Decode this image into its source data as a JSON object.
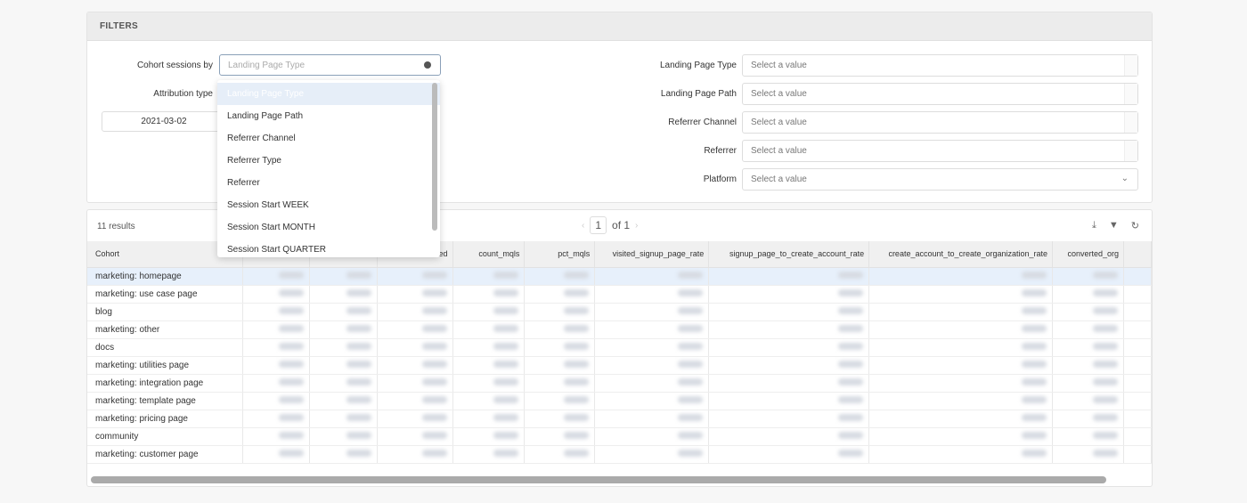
{
  "filters": {
    "title": "FILTERS",
    "cohort_label": "Cohort sessions by",
    "cohort_placeholder": "Landing Page Type",
    "attribution_label": "Attribution type",
    "date_value": "2021-03-02",
    "dropdown_options": [
      "Landing Page Type",
      "Landing Page Path",
      "Referrer Channel",
      "Referrer Type",
      "Referrer",
      "Session Start WEEK",
      "Session Start MONTH",
      "Session Start QUARTER"
    ],
    "right": [
      {
        "label": "Landing Page Type",
        "placeholder": "Select a value"
      },
      {
        "label": "Landing Page Path",
        "placeholder": "Select a value"
      },
      {
        "label": "Referrer Channel",
        "placeholder": "Select a value"
      },
      {
        "label": "Referrer",
        "placeholder": "Select a value"
      },
      {
        "label": "Platform",
        "placeholder": "Select a value"
      }
    ]
  },
  "table": {
    "results": "11 results",
    "page": "1",
    "of": "of 1",
    "columns": [
      "Cohort",
      "",
      "",
      "ed",
      "count_mqls",
      "pct_mqls",
      "visited_signup_page_rate",
      "signup_page_to_create_account_rate",
      "create_account_to_create_organization_rate",
      "converted_org",
      ""
    ],
    "rows": [
      "marketing: homepage",
      "marketing: use case page",
      "blog",
      "marketing: other",
      "docs",
      "marketing: utilities page",
      "marketing: integration page",
      "marketing: template page",
      "marketing: pricing page",
      "community",
      "marketing: customer page"
    ]
  }
}
